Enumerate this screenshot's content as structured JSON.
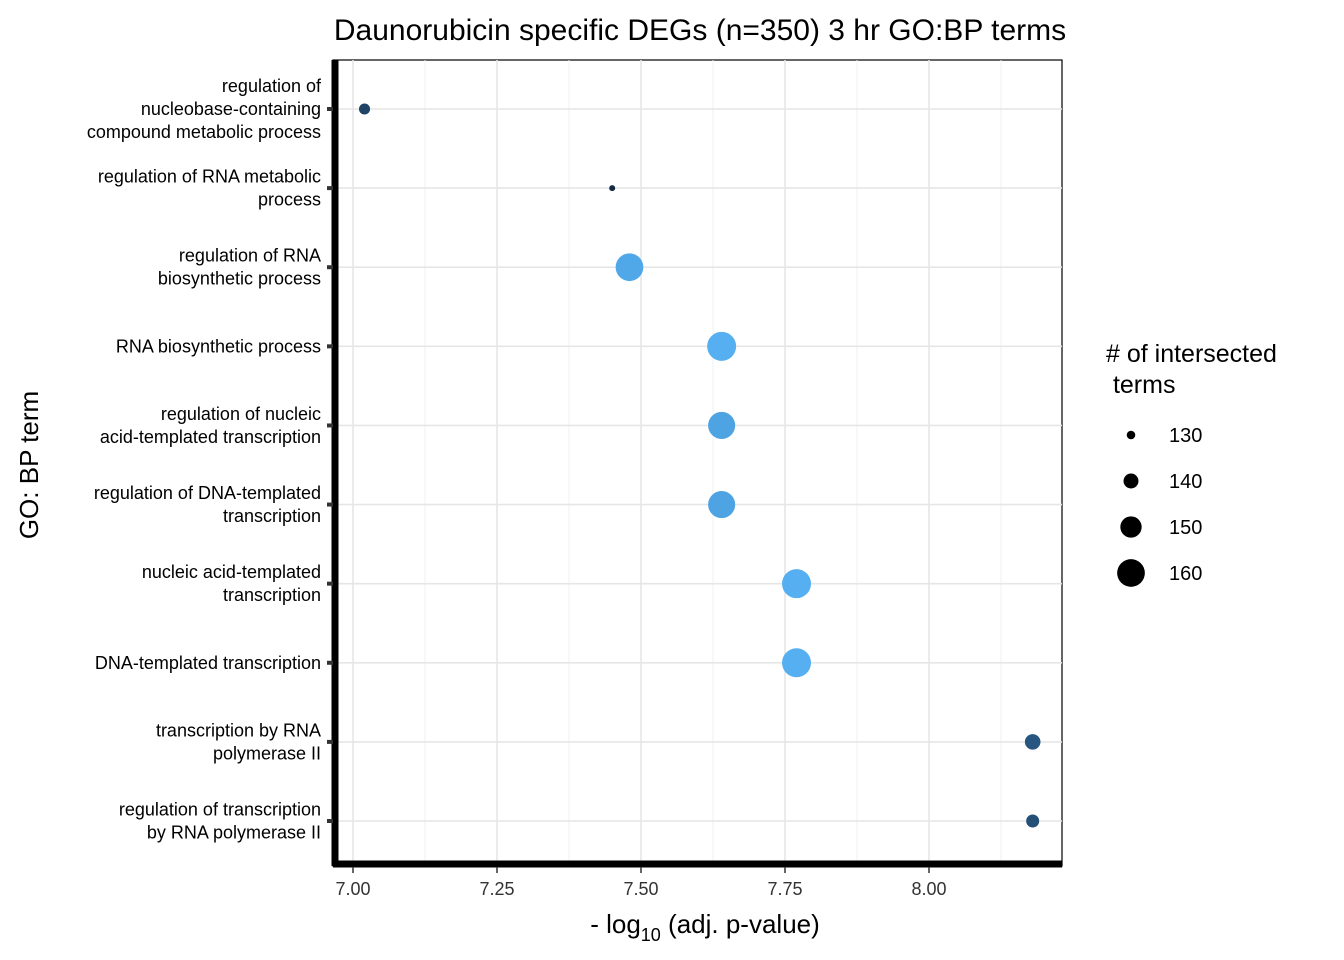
{
  "chart_data": {
    "type": "scatter",
    "title": "Daunorubicin specific DEGs (n=350) 3 hr GO:BP terms",
    "xlabel": {
      "prefix": "- log",
      "subscript": "10",
      "suffix": " (adj. p-value)"
    },
    "ylabel": "GO: BP term",
    "xlim": [
      6.96,
      8.23
    ],
    "x_ticks": [
      7.0,
      7.25,
      7.5,
      7.75,
      8.0
    ],
    "x_tick_labels": [
      "7.00",
      "7.25",
      "7.50",
      "7.75",
      "8.00"
    ],
    "grid": true,
    "legend": {
      "title_lines": [
        "# of intersected",
        " terms"
      ],
      "placement": "right",
      "size_values": [
        130,
        140,
        150,
        160
      ],
      "size_labels": [
        "130",
        "140",
        "150",
        "160"
      ],
      "color": "#000000"
    },
    "points": [
      {
        "term_lines": [
          "regulation of",
          "nucleobase-containing",
          "compound metabolic process"
        ],
        "x": 7.02,
        "size": 134,
        "color": "#1f4466"
      },
      {
        "term_lines": [
          "regulation of RNA metabolic",
          "process"
        ],
        "x": 7.45,
        "size": 126,
        "color": "#132b43"
      },
      {
        "term_lines": [
          "regulation of RNA",
          "biosynthetic process"
        ],
        "x": 7.48,
        "size": 160,
        "color": "#51a8e9"
      },
      {
        "term_lines": [
          "RNA biosynthetic process"
        ],
        "x": 7.64,
        "size": 162,
        "color": "#55aff0"
      },
      {
        "term_lines": [
          "regulation of nucleic",
          "acid-templated transcription"
        ],
        "x": 7.64,
        "size": 159,
        "color": "#4ea3e3"
      },
      {
        "term_lines": [
          "regulation of DNA-templated",
          "transcription"
        ],
        "x": 7.64,
        "size": 159,
        "color": "#4ea3e3"
      },
      {
        "term_lines": [
          "nucleic acid-templated",
          "transcription"
        ],
        "x": 7.77,
        "size": 162,
        "color": "#55aff0"
      },
      {
        "term_lines": [
          "DNA-templated transcription"
        ],
        "x": 7.77,
        "size": 162,
        "color": "#55aff0"
      },
      {
        "term_lines": [
          "transcription by RNA",
          "polymerase II"
        ],
        "x": 8.18,
        "size": 141,
        "color": "#275780"
      },
      {
        "term_lines": [
          "regulation of transcription",
          "by RNA polymerase II"
        ],
        "x": 8.18,
        "size": 137,
        "color": "#244f76"
      }
    ]
  }
}
